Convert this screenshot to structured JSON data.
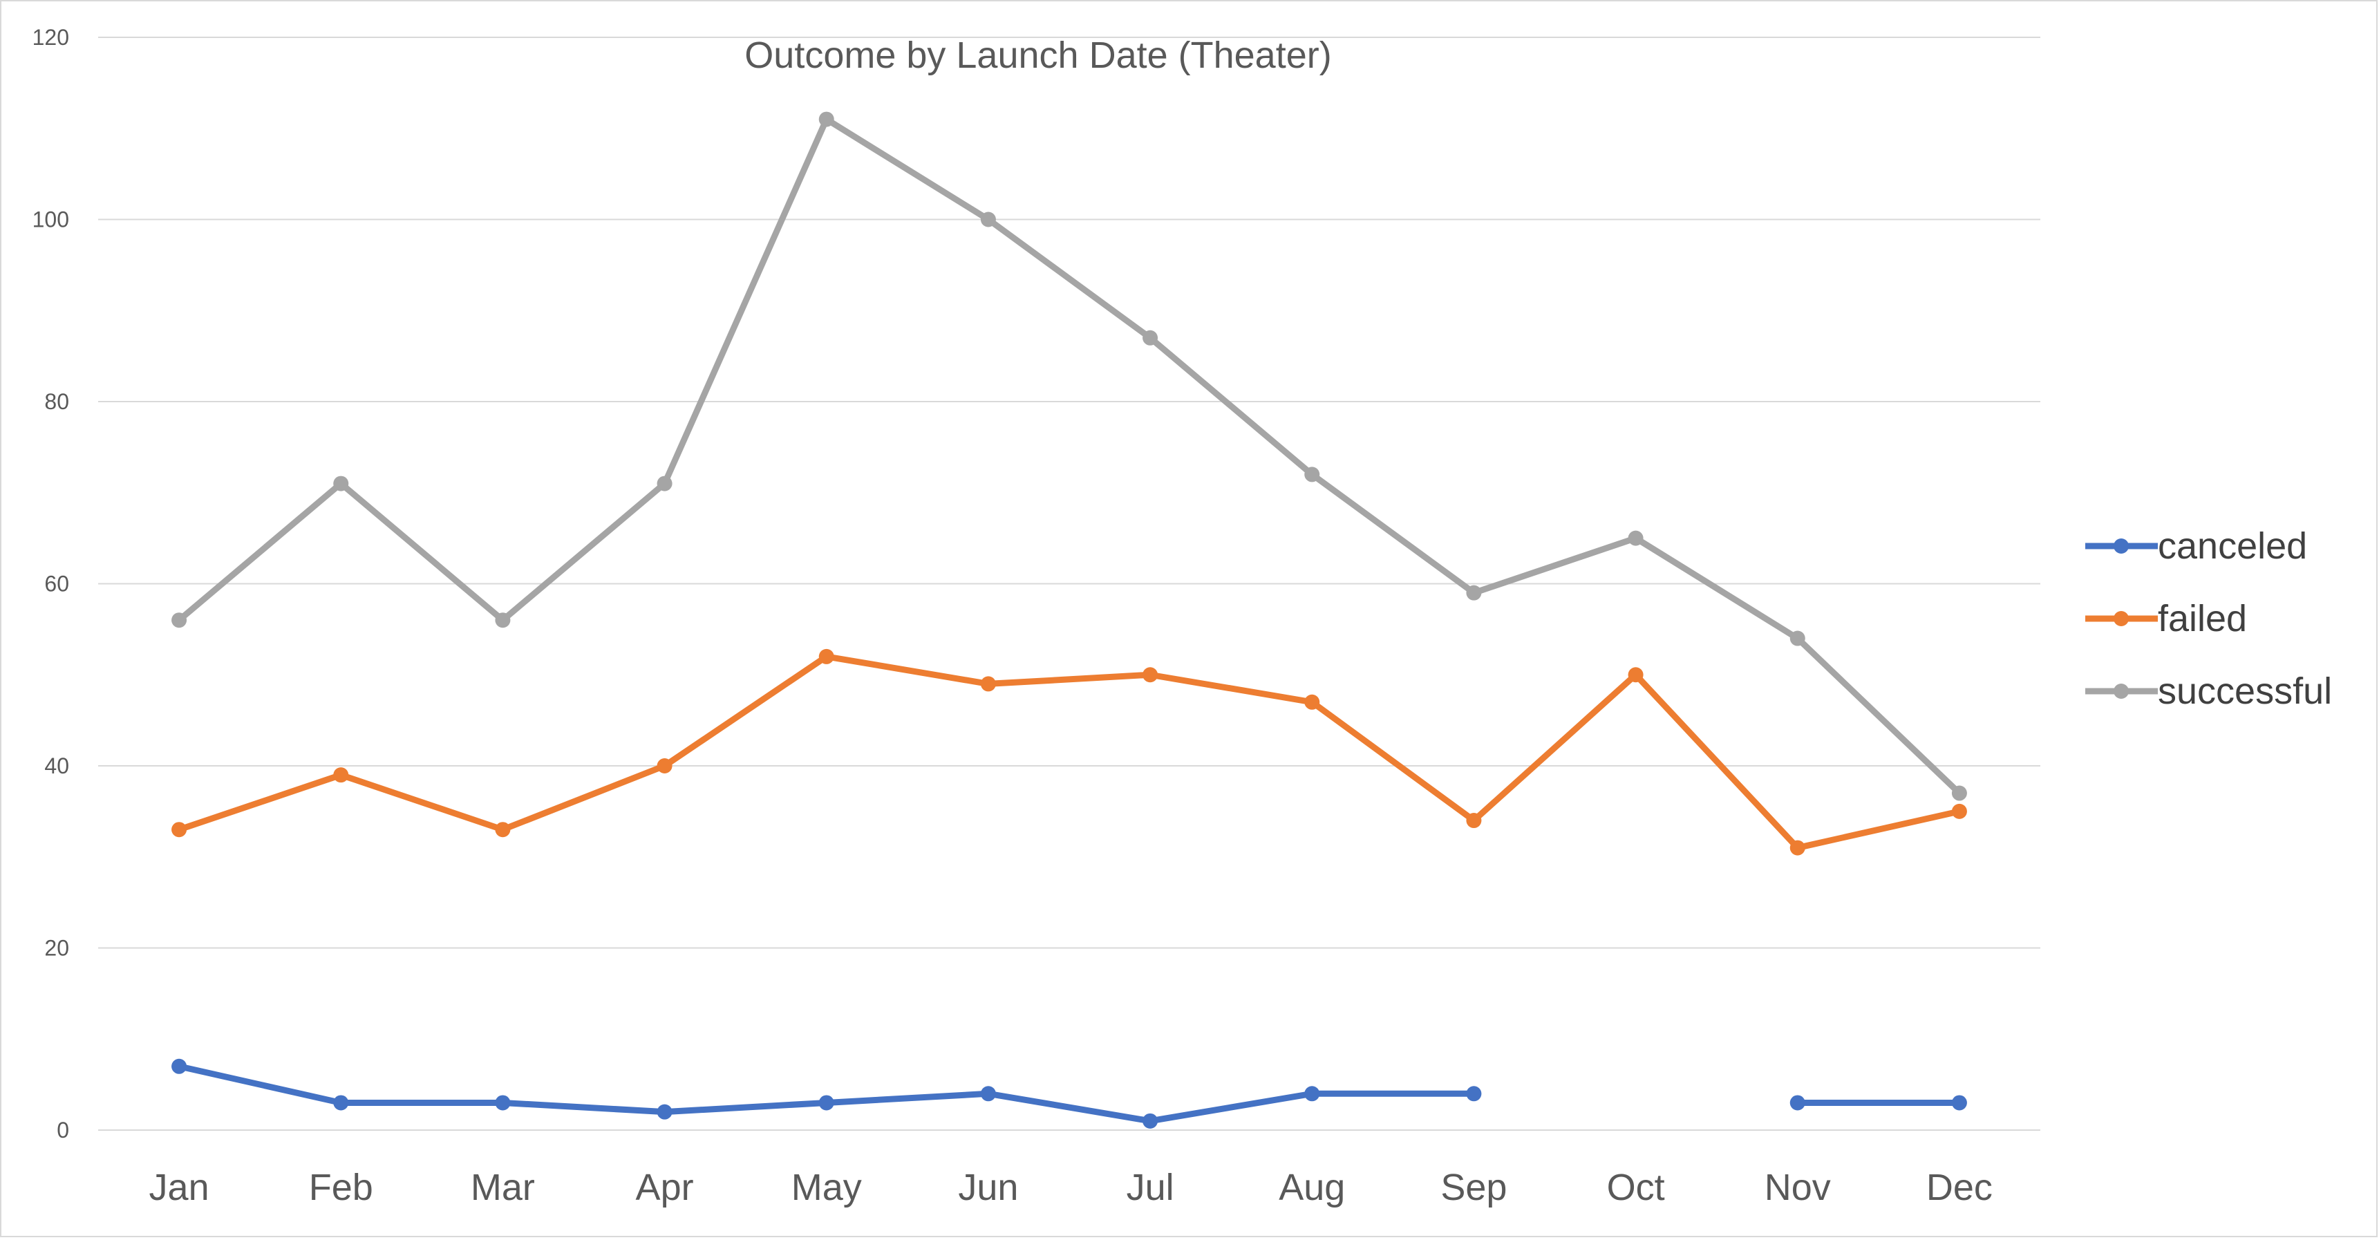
{
  "chart_data": {
    "type": "line",
    "title": "Outcome by Launch Date (Theater)",
    "xlabel": "",
    "ylabel": "",
    "categories": [
      "Jan",
      "Feb",
      "Mar",
      "Apr",
      "May",
      "Jun",
      "Jul",
      "Aug",
      "Sep",
      "Oct",
      "Nov",
      "Dec"
    ],
    "yticks": [
      "0",
      "20",
      "40",
      "60",
      "80",
      "100",
      "120"
    ],
    "ylim": [
      0,
      120
    ],
    "grid": true,
    "legend_position": "right",
    "series": [
      {
        "name": "canceled",
        "color": "#4472C4",
        "values": [
          7,
          3,
          3,
          2,
          3,
          4,
          1,
          4,
          4,
          null,
          3,
          3
        ]
      },
      {
        "name": "failed",
        "color": "#ED7D31",
        "values": [
          33,
          39,
          33,
          40,
          52,
          49,
          50,
          47,
          34,
          50,
          31,
          35
        ]
      },
      {
        "name": "successful",
        "color": "#A5A5A5",
        "values": [
          56,
          71,
          56,
          71,
          111,
          100,
          87,
          72,
          59,
          65,
          54,
          37
        ]
      }
    ]
  }
}
